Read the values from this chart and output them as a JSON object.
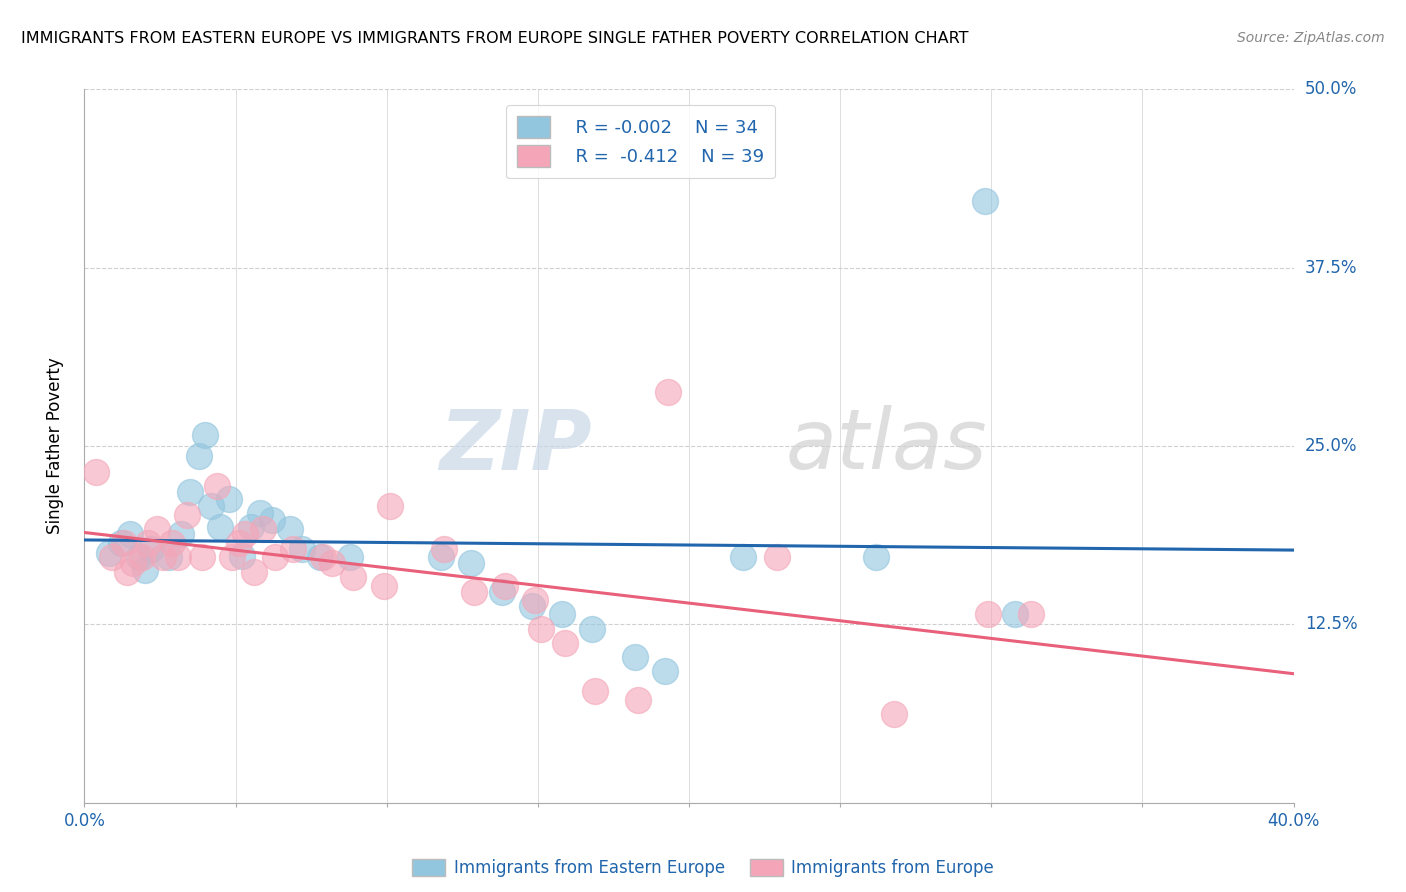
{
  "title": "IMMIGRANTS FROM EASTERN EUROPE VS IMMIGRANTS FROM EUROPE SINGLE FATHER POVERTY CORRELATION CHART",
  "source": "Source: ZipAtlas.com",
  "xlabel_blue": "Immigrants from Eastern Europe",
  "xlabel_pink": "Immigrants from Europe",
  "ylabel": "Single Father Poverty",
  "xlim": [
    0.0,
    0.4
  ],
  "ylim": [
    0.0,
    0.5
  ],
  "xticks": [
    0.0,
    0.05,
    0.1,
    0.15,
    0.2,
    0.25,
    0.3,
    0.35,
    0.4
  ],
  "yticks": [
    0.0,
    0.125,
    0.25,
    0.375,
    0.5
  ],
  "legend_R_blue": "R = -0.002",
  "legend_N_blue": "N = 34",
  "legend_R_pink": "R =  -0.412",
  "legend_N_pink": "N = 39",
  "blue_color": "#92C5DE",
  "pink_color": "#F4A6B8",
  "trend_blue": "#2166ac",
  "trend_pink": "#E8607A",
  "blue_scatter": [
    [
      0.008,
      0.175
    ],
    [
      0.012,
      0.182
    ],
    [
      0.015,
      0.188
    ],
    [
      0.018,
      0.172
    ],
    [
      0.02,
      0.163
    ],
    [
      0.022,
      0.178
    ],
    [
      0.028,
      0.172
    ],
    [
      0.032,
      0.188
    ],
    [
      0.035,
      0.218
    ],
    [
      0.038,
      0.243
    ],
    [
      0.04,
      0.258
    ],
    [
      0.042,
      0.208
    ],
    [
      0.045,
      0.193
    ],
    [
      0.048,
      0.213
    ],
    [
      0.052,
      0.173
    ],
    [
      0.055,
      0.193
    ],
    [
      0.058,
      0.203
    ],
    [
      0.062,
      0.198
    ],
    [
      0.068,
      0.192
    ],
    [
      0.072,
      0.178
    ],
    [
      0.078,
      0.172
    ],
    [
      0.088,
      0.172
    ],
    [
      0.118,
      0.172
    ],
    [
      0.128,
      0.168
    ],
    [
      0.138,
      0.148
    ],
    [
      0.148,
      0.138
    ],
    [
      0.158,
      0.132
    ],
    [
      0.168,
      0.122
    ],
    [
      0.182,
      0.102
    ],
    [
      0.192,
      0.092
    ],
    [
      0.218,
      0.172
    ],
    [
      0.262,
      0.172
    ],
    [
      0.308,
      0.132
    ],
    [
      0.298,
      0.422
    ]
  ],
  "pink_scatter": [
    [
      0.004,
      0.232
    ],
    [
      0.009,
      0.172
    ],
    [
      0.013,
      0.182
    ],
    [
      0.014,
      0.162
    ],
    [
      0.016,
      0.168
    ],
    [
      0.019,
      0.172
    ],
    [
      0.021,
      0.182
    ],
    [
      0.024,
      0.192
    ],
    [
      0.026,
      0.172
    ],
    [
      0.029,
      0.182
    ],
    [
      0.031,
      0.172
    ],
    [
      0.034,
      0.202
    ],
    [
      0.039,
      0.172
    ],
    [
      0.044,
      0.222
    ],
    [
      0.049,
      0.172
    ],
    [
      0.051,
      0.182
    ],
    [
      0.053,
      0.188
    ],
    [
      0.056,
      0.162
    ],
    [
      0.059,
      0.192
    ],
    [
      0.063,
      0.172
    ],
    [
      0.069,
      0.178
    ],
    [
      0.079,
      0.172
    ],
    [
      0.082,
      0.168
    ],
    [
      0.089,
      0.158
    ],
    [
      0.099,
      0.152
    ],
    [
      0.101,
      0.208
    ],
    [
      0.119,
      0.178
    ],
    [
      0.129,
      0.148
    ],
    [
      0.139,
      0.152
    ],
    [
      0.149,
      0.142
    ],
    [
      0.151,
      0.122
    ],
    [
      0.159,
      0.112
    ],
    [
      0.169,
      0.078
    ],
    [
      0.183,
      0.072
    ],
    [
      0.193,
      0.288
    ],
    [
      0.229,
      0.172
    ],
    [
      0.268,
      0.062
    ],
    [
      0.299,
      0.132
    ],
    [
      0.313,
      0.132
    ]
  ],
  "watermark_zip": "ZIP",
  "watermark_atlas": "atlas",
  "background_color": "#ffffff",
  "grid_color": "#d0d0d0"
}
